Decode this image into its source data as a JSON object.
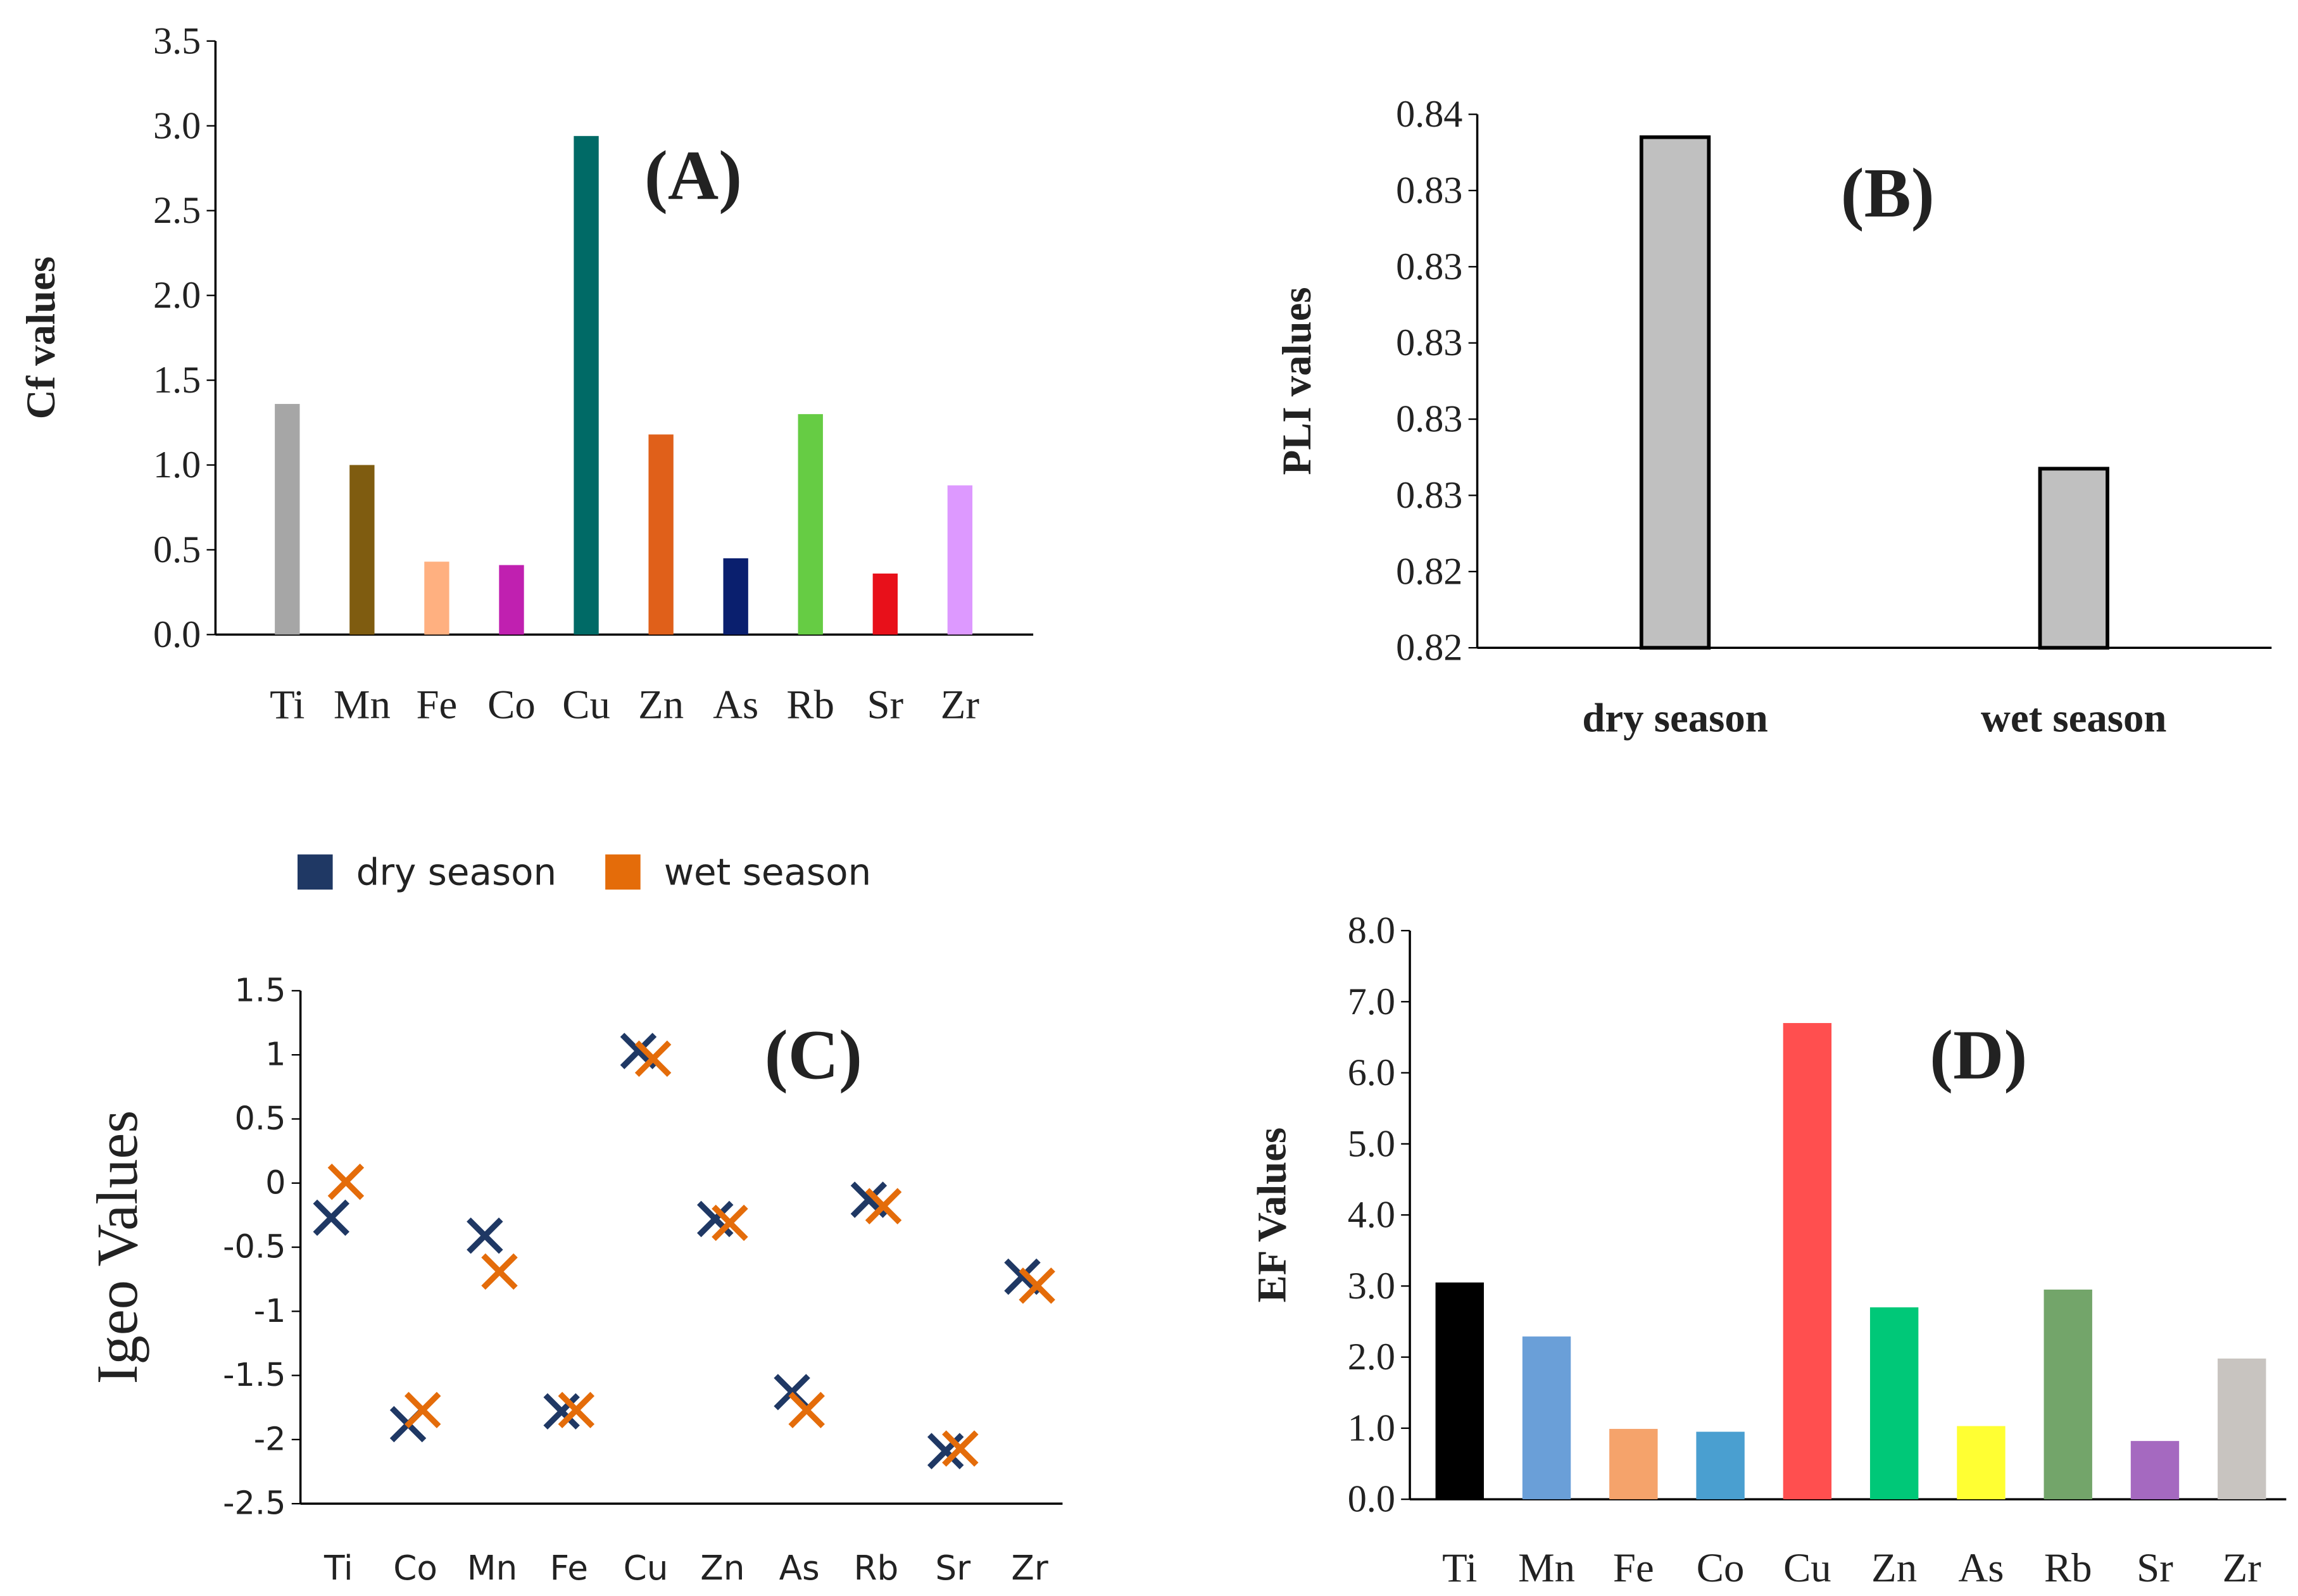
{
  "chart_data": [
    {
      "type": "bar",
      "title": "(A)",
      "y_label": "Cf values",
      "categories": [
        "Ti",
        "Mn",
        "Fe",
        "Co",
        "Cu",
        "Zn",
        "As",
        "Rb",
        "Sr",
        "Zr"
      ],
      "values": [
        1.36,
        1.0,
        0.43,
        0.41,
        2.94,
        1.18,
        0.45,
        1.3,
        0.36,
        0.88
      ],
      "colors": [
        "#a6a6a6",
        "#7f5c10",
        "#ffb080",
        "#c020b0",
        "#006a66",
        "#e0601a",
        "#0a1f6e",
        "#66cc44",
        "#e8101a",
        "#dd99ff"
      ],
      "ylim": [
        0,
        3.5
      ],
      "yticks": [
        {
          "value": 0,
          "label": "0.0"
        },
        0.5,
        {
          "value": 1,
          "label": "1.0"
        },
        1.5,
        {
          "value": 2,
          "label": "2.0"
        },
        2.5,
        {
          "value": 3,
          "label": "3.0"
        },
        3.5
      ]
    },
    {
      "type": "bar",
      "title": "(B)",
      "y_label": "PLI values",
      "categories": [
        "dry season",
        "wet season"
      ],
      "values": [
        0.8354,
        0.8267
      ],
      "color": "#c0c0c0",
      "edgecolor": "#000000",
      "ylim": [
        0.822,
        0.836
      ],
      "yticks": [
        {
          "value": 0.822,
          "label": "0.82"
        },
        {
          "value": 0.824,
          "label": "0.82"
        },
        {
          "value": 0.826,
          "label": "0.83"
        },
        {
          "value": 0.828,
          "label": "0.83"
        },
        {
          "value": 0.83,
          "label": "0.83"
        },
        {
          "value": 0.832,
          "label": "0.83"
        },
        {
          "value": 0.834,
          "label": "0.83"
        },
        {
          "value": 0.836,
          "label": "0.84"
        }
      ]
    },
    {
      "type": "scatter",
      "title": "(C)",
      "y_label": "Igeo Values",
      "categories": [
        "Ti",
        "Co",
        "Mn",
        "Fe",
        "Cu",
        "Zn",
        "As",
        "Rb",
        "Sr",
        "Zr"
      ],
      "series": [
        {
          "name": "dry season",
          "color": "#1f3864",
          "values": [
            -0.27,
            -1.88,
            -0.41,
            -1.78,
            1.03,
            -0.28,
            -1.63,
            -0.13,
            -2.09,
            -0.73
          ]
        },
        {
          "name": "wet season",
          "color": "#e46c0a",
          "values": [
            0.01,
            -1.77,
            -0.69,
            -1.77,
            0.97,
            -0.31,
            -1.77,
            -0.18,
            -2.07,
            -0.8
          ]
        }
      ],
      "legend": "top",
      "ylim": [
        -2.5,
        1.5
      ],
      "yticks": [
        1.5,
        1,
        0.5,
        0,
        -0.5,
        -1,
        -1.5,
        -2,
        -2.5
      ]
    },
    {
      "type": "bar",
      "title": "(D)",
      "y_label": "EF Values",
      "categories": [
        "Ti",
        "Mn",
        "Fe",
        "Co",
        "Cu",
        "Zn",
        "As",
        "Rb",
        "Sr",
        "Zr"
      ],
      "values": [
        3.05,
        2.29,
        0.99,
        0.95,
        6.7,
        2.7,
        1.03,
        2.95,
        0.82,
        1.98
      ],
      "colors": [
        "#000000",
        "#6a9fd8",
        "#f5a36b",
        "#4a9fd0",
        "#ff4f4f",
        "#00c878",
        "#ffff33",
        "#73a56a",
        "#a569c0",
        "#c8c4c0"
      ],
      "ylim": [
        0,
        8
      ],
      "yticks": [
        {
          "value": 0,
          "label": "0.0"
        },
        {
          "value": 1,
          "label": "1.0"
        },
        {
          "value": 2,
          "label": "2.0"
        },
        {
          "value": 3,
          "label": "3.0"
        },
        {
          "value": 4,
          "label": "4.0"
        },
        {
          "value": 5,
          "label": "5.0"
        },
        {
          "value": 6,
          "label": "6.0"
        },
        {
          "value": 7,
          "label": "7.0"
        },
        {
          "value": 8,
          "label": "8.0"
        }
      ]
    }
  ]
}
